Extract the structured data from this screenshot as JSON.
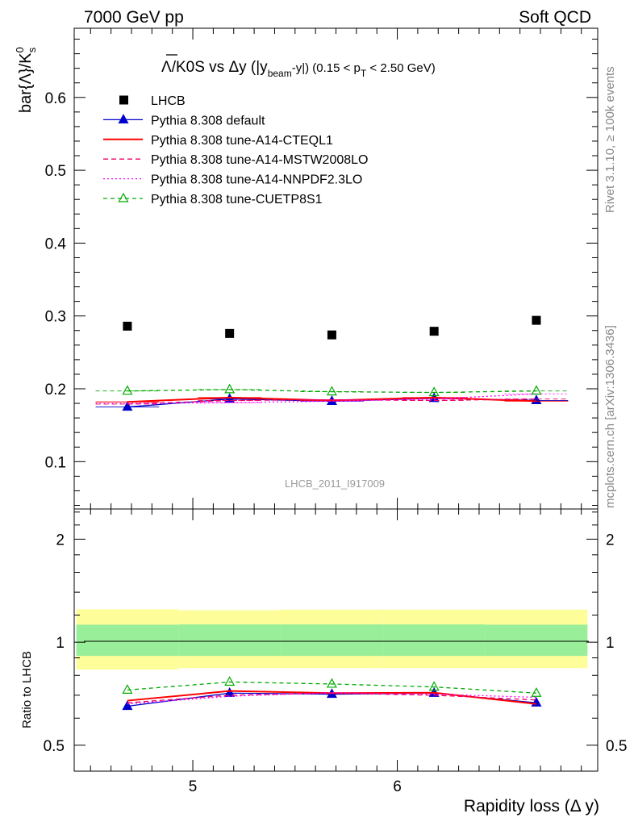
{
  "header": {
    "left": "7000 GeV pp",
    "right": "Soft QCD"
  },
  "side_labels": {
    "rivet": "Rivet 3.1.10, ≥ 100k events",
    "source": "mcplots.cern.ch [arXiv:1306.3436]"
  },
  "chart_data": [
    {
      "type": "scatter",
      "title": "Λ̄/K0S vs Δy (|y_beam-y|) (0.15 < p_T < 2.50 GeV)",
      "title_parts": {
        "lambdabar": "Λ",
        "pre": "/K0S vs ",
        "dy": "Δy (|y",
        "beam": "beam",
        "mid": "-y|) (0.15 < p",
        "t": "T",
        "post": " < 2.50 GeV)"
      },
      "ylabel": "bar{Λ}/K",
      "ylabel_sup": "0",
      "ylabel_sub": "s",
      "watermark": "LHCB_2011_I917009",
      "xlim": [
        4.42,
        6.98
      ],
      "ylim": [
        0.035,
        0.695
      ],
      "x": [
        4.68,
        5.18,
        5.68,
        6.18,
        6.68
      ],
      "bin_edges": [
        4.43,
        4.93,
        5.43,
        5.93,
        6.43,
        6.93
      ],
      "yticks": [
        {
          "value": 0.1,
          "label": "0.1"
        },
        {
          "value": 0.2,
          "label": "0.2"
        },
        {
          "value": 0.3,
          "label": "0.3"
        },
        {
          "value": 0.4,
          "label": "0.4"
        },
        {
          "value": 0.5,
          "label": "0.5"
        },
        {
          "value": 0.6,
          "label": "0.6"
        }
      ],
      "legend_placement": "top-left",
      "data_series": {
        "name": "LHCB",
        "color": "#000000",
        "values": [
          0.286,
          0.276,
          0.274,
          0.279,
          0.294
        ]
      },
      "series": [
        {
          "name": "Pythia 8.308 default",
          "color": "#0000cc",
          "dash": "",
          "marker": "triangle-filled",
          "values": [
            0.175,
            0.186,
            0.183,
            0.187,
            0.184
          ]
        },
        {
          "name": "Pythia 8.308 tune-A14-CTEQL1",
          "color": "#ff0000",
          "dash": "",
          "marker": "none",
          "values": [
            0.182,
            0.188,
            0.184,
            0.188,
            0.183
          ]
        },
        {
          "name": "Pythia 8.308 tune-A14-MSTW2008LO",
          "color": "#ee0066",
          "dash": "6,4",
          "marker": "none",
          "values": [
            0.179,
            0.184,
            0.185,
            0.184,
            0.186
          ]
        },
        {
          "name": "Pythia 8.308 tune-A14-NNPDF2.3LO",
          "color": "#ff00ff",
          "dash": "2,3",
          "marker": "none",
          "values": [
            0.18,
            0.181,
            0.183,
            0.186,
            0.193
          ]
        },
        {
          "name": "Pythia 8.308 tune-CUETP8S1",
          "color": "#00aa00",
          "dash": "5,4",
          "marker": "triangle-open",
          "values": [
            0.197,
            0.199,
            0.196,
            0.195,
            0.197
          ]
        }
      ]
    },
    {
      "type": "scatter",
      "ylabel": "Ratio to LHCB",
      "xlabel": "Rapidity loss (Δ y)",
      "ylim": [
        0.42,
        2.45
      ],
      "log_y": true,
      "yticks": [
        {
          "value": 0.5,
          "label": "0.5"
        },
        {
          "value": 1,
          "label": "1"
        },
        {
          "value": 2,
          "label": "2"
        }
      ],
      "xticks": [
        {
          "value": 5,
          "label": "5"
        },
        {
          "value": 6,
          "label": "6"
        }
      ],
      "band_stat": [
        [
          0.912,
          1.125
        ],
        [
          0.912,
          1.127
        ],
        [
          0.912,
          1.127
        ],
        [
          0.912,
          1.127
        ],
        [
          0.912,
          1.125
        ]
      ],
      "band_total": [
        [
          0.832,
          1.248
        ],
        [
          0.84,
          1.24
        ],
        [
          0.84,
          1.245
        ],
        [
          0.84,
          1.245
        ],
        [
          0.84,
          1.245
        ]
      ],
      "series": [
        {
          "name": "Pythia 8.308 default",
          "values": [
            0.65,
            0.71,
            0.705,
            0.71,
            0.665
          ]
        },
        {
          "name": "Pythia 8.308 tune-A14-CTEQL1",
          "values": [
            0.675,
            0.72,
            0.71,
            0.712,
            0.66
          ]
        },
        {
          "name": "Pythia 8.308 tune-A14-MSTW2008LO",
          "values": [
            0.665,
            0.7,
            0.71,
            0.7,
            0.678
          ]
        },
        {
          "name": "Pythia 8.308 tune-A14-NNPDF2.3LO",
          "values": [
            0.66,
            0.695,
            0.712,
            0.705,
            0.69
          ]
        },
        {
          "name": "Pythia 8.308 tune-CUETP8S1",
          "values": [
            0.725,
            0.765,
            0.755,
            0.74,
            0.71
          ]
        }
      ]
    }
  ]
}
